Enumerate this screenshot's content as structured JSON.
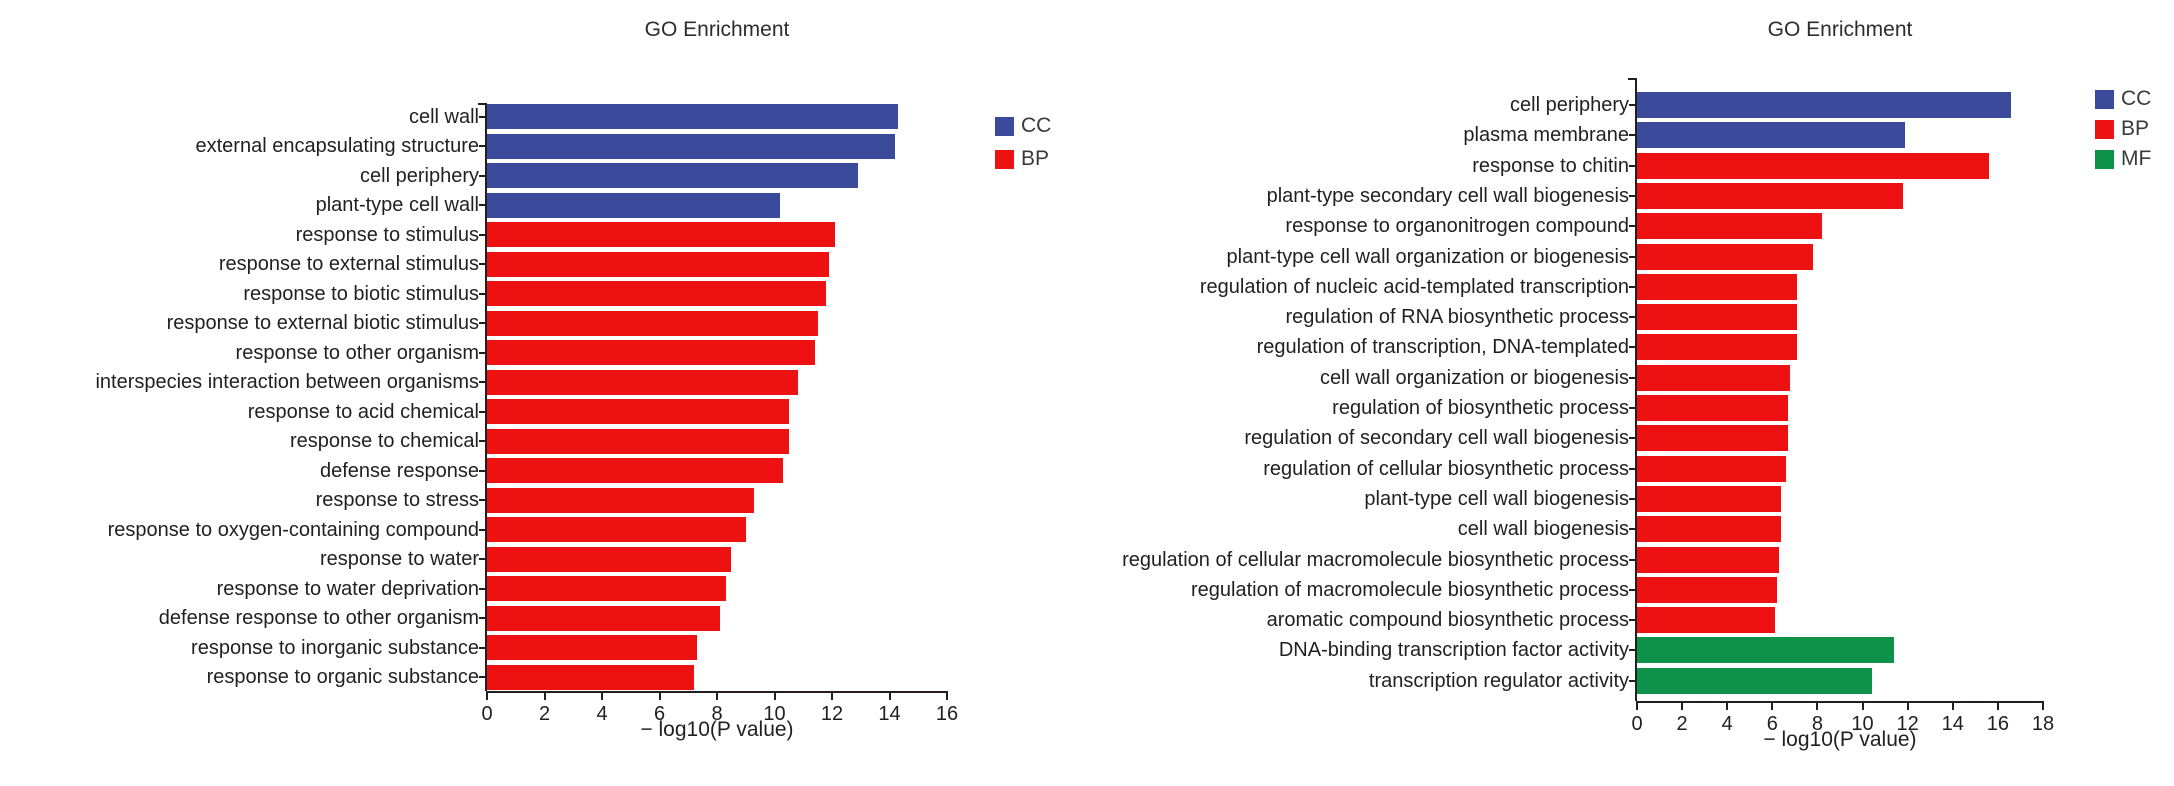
{
  "page": {
    "background": "#ffffff"
  },
  "colors": {
    "cc": "#3B4A9B",
    "bp": "#EE1111",
    "mf": "#0E9148",
    "axis": "#231F20"
  },
  "chart_data": [
    {
      "type": "bar",
      "orientation": "horizontal",
      "title": "GO Enrichment",
      "xlabel": "− log10(P value)",
      "xlim": [
        0,
        16
      ],
      "xticks": [
        0,
        2,
        4,
        6,
        8,
        10,
        12,
        14,
        16
      ],
      "grid": false,
      "legend_position": "right-top",
      "legend": [
        {
          "label": "CC",
          "key": "cc"
        },
        {
          "label": "BP",
          "key": "bp"
        }
      ],
      "categories": [
        "cell wall",
        "external encapsulating structure",
        "cell periphery",
        "plant-type cell wall",
        "response to stimulus",
        "response to external stimulus",
        "response to biotic stimulus",
        "response to external biotic stimulus",
        "response to other organism",
        "interspecies interaction between organisms",
        "response to acid chemical",
        "response to chemical",
        "defense response",
        "response to stress",
        "response to oxygen-containing compound",
        "response to water",
        "response to water deprivation",
        "defense response to other organism",
        "response to inorganic substance",
        "response to organic substance"
      ],
      "values": [
        14.3,
        14.2,
        12.9,
        10.2,
        12.1,
        11.9,
        11.8,
        11.5,
        11.4,
        10.8,
        10.5,
        10.5,
        10.3,
        9.3,
        9.0,
        8.5,
        8.3,
        8.1,
        7.3,
        7.2
      ],
      "groups": [
        "cc",
        "cc",
        "cc",
        "cc",
        "bp",
        "bp",
        "bp",
        "bp",
        "bp",
        "bp",
        "bp",
        "bp",
        "bp",
        "bp",
        "bp",
        "bp",
        "bp",
        "bp",
        "bp",
        "bp"
      ]
    },
    {
      "type": "bar",
      "orientation": "horizontal",
      "title": "GO Enrichment",
      "xlabel": "− log10(P value)",
      "xlim": [
        0,
        18
      ],
      "xticks": [
        0,
        2,
        4,
        6,
        8,
        10,
        12,
        14,
        16,
        18
      ],
      "grid": false,
      "legend_position": "right-top",
      "legend": [
        {
          "label": "CC",
          "key": "cc"
        },
        {
          "label": "BP",
          "key": "bp"
        },
        {
          "label": "MF",
          "key": "mf"
        }
      ],
      "categories": [
        "cell periphery",
        "plasma membrane",
        "response to chitin",
        "plant-type secondary cell wall biogenesis",
        "response to organonitrogen compound",
        "plant-type cell wall organization or biogenesis",
        "regulation of nucleic acid-templated transcription",
        "regulation of RNA biosynthetic process",
        "regulation of transcription, DNA-templated",
        "cell wall organization or biogenesis",
        "regulation of biosynthetic process",
        "regulation of secondary cell wall biogenesis",
        "regulation of cellular biosynthetic process",
        "plant-type cell wall biogenesis",
        "cell wall biogenesis",
        "regulation of cellular macromolecule biosynthetic process",
        "regulation of macromolecule biosynthetic process",
        "aromatic compound biosynthetic process",
        "DNA-binding transcription factor activity",
        "transcription regulator activity"
      ],
      "values": [
        16.6,
        11.9,
        15.6,
        11.8,
        8.2,
        7.8,
        7.1,
        7.1,
        7.1,
        6.8,
        6.7,
        6.7,
        6.6,
        6.4,
        6.4,
        6.3,
        6.2,
        6.1,
        11.4,
        10.4
      ],
      "groups": [
        "cc",
        "cc",
        "bp",
        "bp",
        "bp",
        "bp",
        "bp",
        "bp",
        "bp",
        "bp",
        "bp",
        "bp",
        "bp",
        "bp",
        "bp",
        "bp",
        "bp",
        "bp",
        "mf",
        "mf"
      ]
    }
  ]
}
